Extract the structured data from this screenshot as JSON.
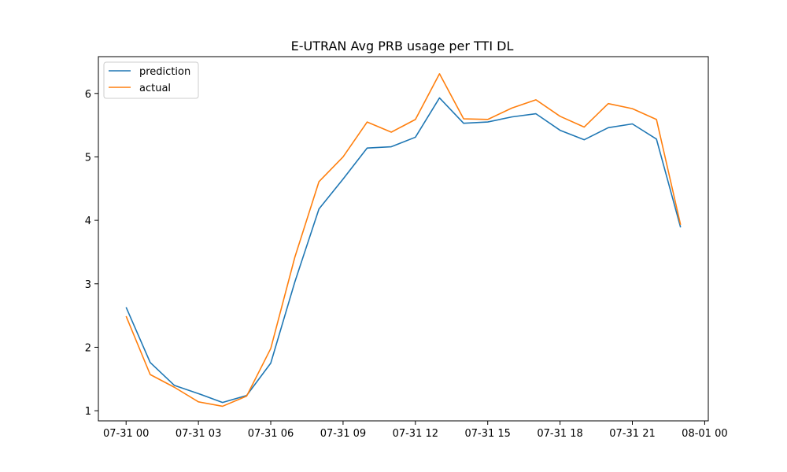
{
  "chart_data": {
    "type": "line",
    "title": "E-UTRAN Avg PRB usage per TTI DL",
    "xlabel": "",
    "ylabel": "",
    "x": [
      "07-31 00:00",
      "07-31 01:00",
      "07-31 02:00",
      "07-31 03:00",
      "07-31 04:00",
      "07-31 05:00",
      "07-31 06:00",
      "07-31 07:00",
      "07-31 08:00",
      "07-31 09:00",
      "07-31 10:00",
      "07-31 11:00",
      "07-31 12:00",
      "07-31 13:00",
      "07-31 14:00",
      "07-31 15:00",
      "07-31 16:00",
      "07-31 17:00",
      "07-31 18:00",
      "07-31 19:00",
      "07-31 20:00",
      "07-31 21:00",
      "07-31 22:00",
      "07-31 23:00"
    ],
    "series": [
      {
        "name": "prediction",
        "color": "#1f77b4",
        "values": [
          2.63,
          1.76,
          1.4,
          1.27,
          1.13,
          1.24,
          1.75,
          3.03,
          4.18,
          4.65,
          5.14,
          5.16,
          5.31,
          5.93,
          5.53,
          5.55,
          5.63,
          5.68,
          5.42,
          5.27,
          5.46,
          5.52,
          5.28,
          3.89
        ]
      },
      {
        "name": "actual",
        "color": "#ff7f0e",
        "values": [
          2.49,
          1.57,
          1.37,
          1.14,
          1.07,
          1.23,
          1.98,
          3.42,
          4.61,
          5.0,
          5.55,
          5.39,
          5.59,
          6.31,
          5.6,
          5.59,
          5.77,
          5.9,
          5.64,
          5.47,
          5.84,
          5.76,
          5.59,
          3.93
        ]
      }
    ],
    "xticks": [
      "07-31 00",
      "07-31 03",
      "07-31 06",
      "07-31 09",
      "07-31 12",
      "07-31 15",
      "07-31 18",
      "07-31 21",
      "08-01 00"
    ],
    "xtick_hours": [
      0,
      3,
      6,
      9,
      12,
      15,
      18,
      21,
      24
    ],
    "yticks": [
      1,
      2,
      3,
      4,
      5,
      6
    ],
    "xlim_hours": [
      -1.15,
      24.15
    ],
    "ylim": [
      0.84,
      6.58
    ],
    "legend_position": "upper-left",
    "grid": false
  }
}
